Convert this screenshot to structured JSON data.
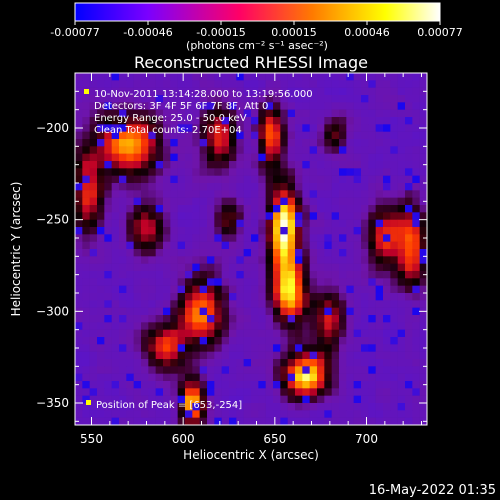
{
  "colorbar": {
    "ticks": [
      "-0.00077",
      "-0.00046",
      "-0.00015",
      "0.00015",
      "0.00046",
      "0.00077"
    ],
    "unit": "(photons cm⁻² s⁻¹ asec⁻²)"
  },
  "chart_data": {
    "type": "heatmap",
    "title": "Reconstructed RHESSI Image",
    "xlabel": "Heliocentric X (arcsec)",
    "ylabel": "Heliocentric Y (arcsec)",
    "xlim": [
      541,
      733
    ],
    "ylim": [
      -362,
      -170
    ],
    "xticks": [
      550,
      600,
      650,
      700
    ],
    "yticks": [
      -200,
      -250,
      -300,
      -350
    ],
    "color_range": [
      -0.00077,
      0.00077
    ],
    "colormap": [
      "#0000ff",
      "#7b00ff",
      "#ff0066",
      "#ff7a00",
      "#ffff00",
      "#ffffff"
    ],
    "annotations": [
      "10-Nov-2011 13:14:28.000 to 13:19:56.000",
      "Detectors: 3F 4F 5F 6F 7F 8F, Att 0",
      "Energy Range: 25.0 - 50.0 keV",
      "Clean      Total counts: 2.70E+04"
    ],
    "peak_label": "Position of Peak = [653,-254]",
    "peak": [
      653,
      -254
    ],
    "sources": [
      {
        "x": 655,
        "y": -255,
        "sx": 6,
        "sy": 16,
        "a": 1.0
      },
      {
        "x": 658,
        "y": -290,
        "sx": 7,
        "sy": 12,
        "a": 0.85
      },
      {
        "x": 667,
        "y": -335,
        "sx": 9,
        "sy": 9,
        "a": 0.9
      },
      {
        "x": 648,
        "y": -205,
        "sx": 5,
        "sy": 13,
        "a": 0.7
      },
      {
        "x": 610,
        "y": -300,
        "sx": 9,
        "sy": 13,
        "a": 0.75
      },
      {
        "x": 590,
        "y": -320,
        "sx": 8,
        "sy": 9,
        "a": 0.6
      },
      {
        "x": 605,
        "y": -350,
        "sx": 5,
        "sy": 9,
        "a": 0.85
      },
      {
        "x": 570,
        "y": -210,
        "sx": 12,
        "sy": 12,
        "a": 0.8
      },
      {
        "x": 580,
        "y": -255,
        "sx": 7,
        "sy": 10,
        "a": 0.55
      },
      {
        "x": 620,
        "y": -205,
        "sx": 7,
        "sy": 12,
        "a": 0.6
      },
      {
        "x": 625,
        "y": -250,
        "sx": 5,
        "sy": 8,
        "a": 0.45
      },
      {
        "x": 680,
        "y": -305,
        "sx": 6,
        "sy": 12,
        "a": 0.55
      },
      {
        "x": 710,
        "y": -260,
        "sx": 7,
        "sy": 12,
        "a": 0.6
      },
      {
        "x": 725,
        "y": -265,
        "sx": 6,
        "sy": 16,
        "a": 0.65
      },
      {
        "x": 548,
        "y": -235,
        "sx": 6,
        "sy": 16,
        "a": 0.6
      },
      {
        "x": 683,
        "y": -205,
        "sx": 5,
        "sy": 7,
        "a": 0.4
      }
    ]
  },
  "footer": {
    "timestamp": "16-May-2022 01:35"
  }
}
